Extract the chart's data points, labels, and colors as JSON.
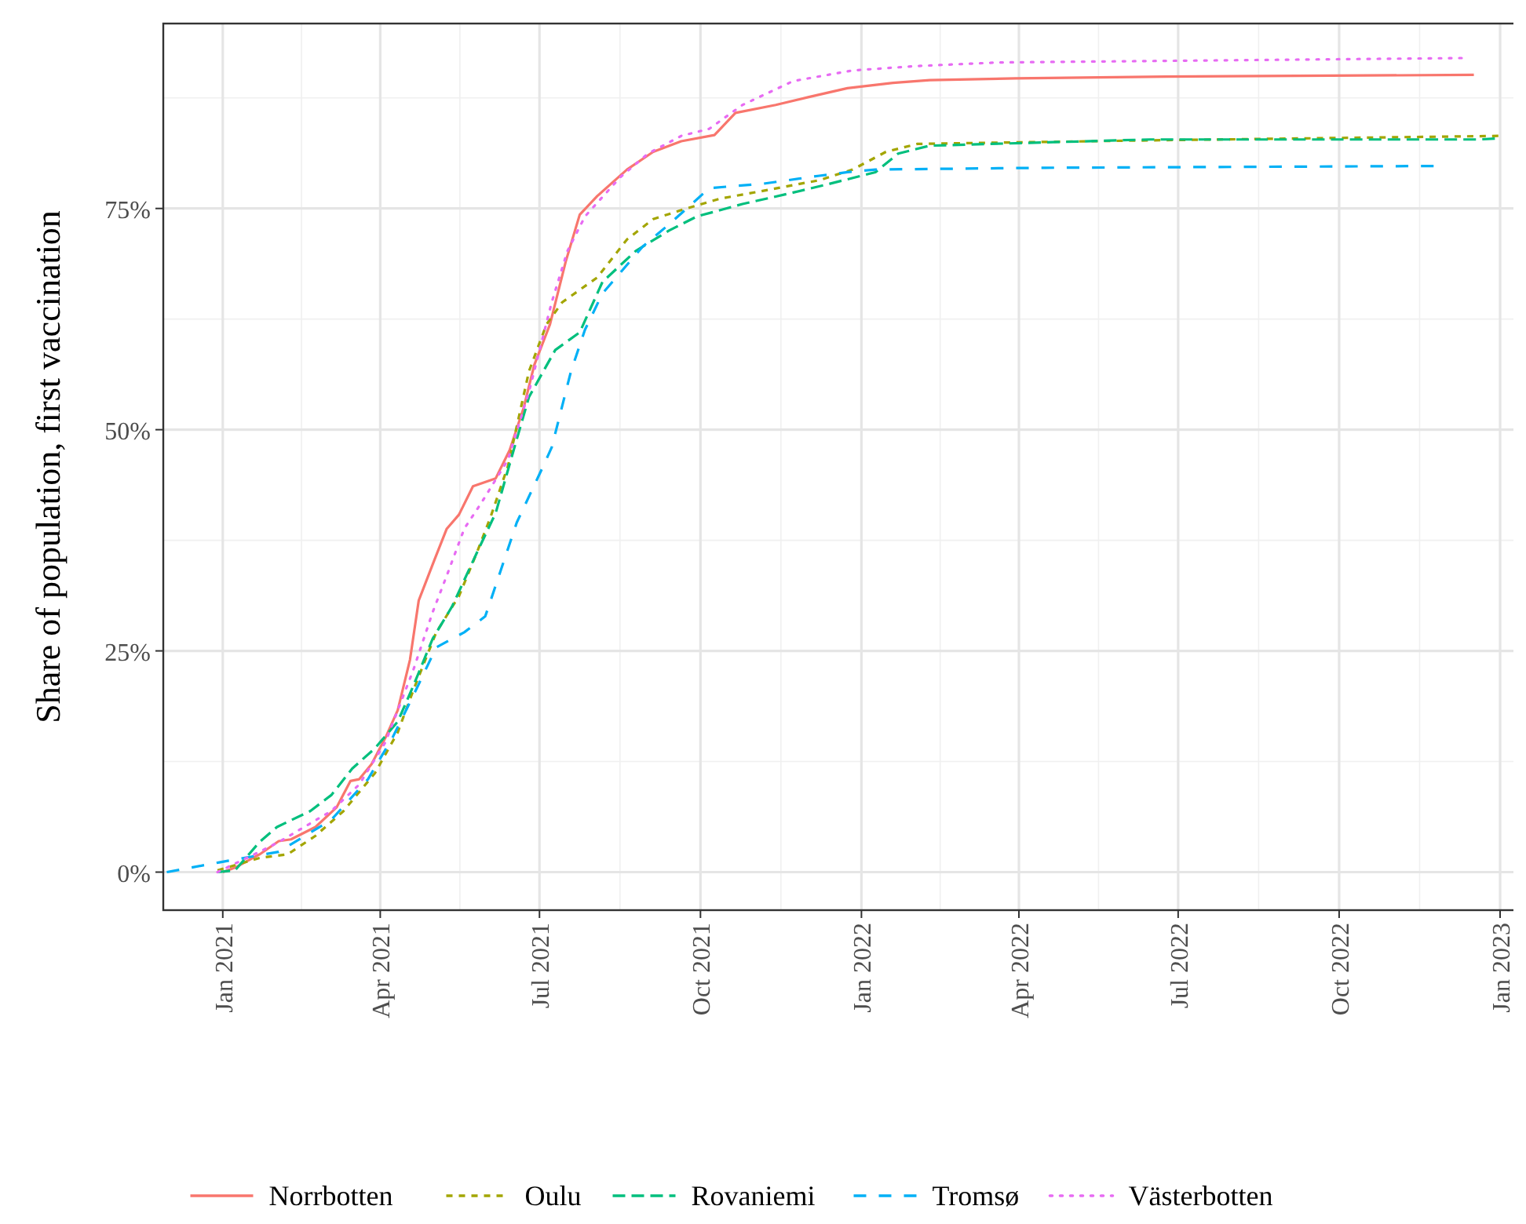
{
  "chart_data": {
    "type": "line",
    "ylabel": "Share of population, first vaccination",
    "xlim": [
      "2020-11-28",
      "2023-01-14"
    ],
    "ylim": [
      -4.3,
      95.9
    ],
    "xticks": [
      {
        "value": "2021-01",
        "label": "Jan 2021"
      },
      {
        "value": "2021-04",
        "label": "Apr 2021"
      },
      {
        "value": "2021-07",
        "label": "Jul 2021"
      },
      {
        "value": "2021-10",
        "label": "Oct 2021"
      },
      {
        "value": "2022-01",
        "label": "Jan 2022"
      },
      {
        "value": "2022-04",
        "label": "Apr 2022"
      },
      {
        "value": "2022-07",
        "label": "Jul 2022"
      },
      {
        "value": "2022-10",
        "label": "Oct 2022"
      },
      {
        "value": "2023-01",
        "label": "Jan 2023"
      }
    ],
    "yticks": [
      {
        "value": 0,
        "label": "0%"
      },
      {
        "value": 25,
        "label": "25%"
      },
      {
        "value": 50,
        "label": "50%"
      },
      {
        "value": 75,
        "label": "75%"
      }
    ],
    "grid": true,
    "legend": "bottom",
    "marker": "none",
    "series": [
      {
        "name": "Norrbotten",
        "color": "#f8766d",
        "line_style": "solid",
        "x": [
          "2021-01-01",
          "2021-01-08",
          "2021-01-22",
          "2021-02-02",
          "2021-02-09",
          "2021-02-23",
          "2021-03-07",
          "2021-03-15",
          "2021-03-20",
          "2021-03-27",
          "2021-04-04",
          "2021-04-11",
          "2021-04-18",
          "2021-04-23",
          "2021-05-02",
          "2021-05-09",
          "2021-05-16",
          "2021-05-24",
          "2021-06-06",
          "2021-06-14",
          "2021-06-22",
          "2021-06-28",
          "2021-07-07",
          "2021-07-16",
          "2021-07-24",
          "2021-08-03",
          "2021-08-20",
          "2021-09-04",
          "2021-09-20",
          "2021-10-09",
          "2021-10-21",
          "2021-11-13",
          "2021-12-02",
          "2021-12-24",
          "2022-01-19",
          "2022-02-09",
          "2022-03-30",
          "2022-06-24",
          "2022-12-17"
        ],
        "values": [
          0,
          0.5,
          2,
          3.5,
          3.7,
          5.1,
          7.3,
          10.3,
          10.5,
          12.2,
          15.2,
          18.3,
          24,
          30.7,
          35.3,
          38.8,
          40.4,
          43.6,
          44.5,
          47.7,
          52.5,
          57.3,
          61.9,
          69,
          74.3,
          76.4,
          79.4,
          81.4,
          82.6,
          83.3,
          85.8,
          86.7,
          87.6,
          88.6,
          89.2,
          89.5,
          89.7,
          89.9,
          90.1
        ]
      },
      {
        "name": "Oulu",
        "color": "#a3a500",
        "line_style": "dashed",
        "x": [
          "2020-12-29",
          "2021-01-22",
          "2021-02-07",
          "2021-02-23",
          "2021-03-11",
          "2021-03-29",
          "2021-04-11",
          "2021-04-20",
          "2021-05-03",
          "2021-05-16",
          "2021-05-26",
          "2021-06-03",
          "2021-06-13",
          "2021-06-25",
          "2021-07-05",
          "2021-07-14",
          "2021-08-03",
          "2021-08-20",
          "2021-09-04",
          "2021-09-23",
          "2021-10-12",
          "2021-11-06",
          "2021-12-08",
          "2021-12-27",
          "2022-01-15",
          "2022-02-02",
          "2022-06-15",
          "2022-12-31"
        ],
        "values": [
          0.2,
          1.6,
          2,
          4.1,
          6.9,
          11.2,
          15.8,
          20.6,
          27.1,
          31.2,
          36,
          40.1,
          45.9,
          56.6,
          61.9,
          64.4,
          67.2,
          71.5,
          73.8,
          75,
          76.1,
          77,
          78.2,
          79.4,
          81.4,
          82.3,
          82.7,
          83.2
        ]
      },
      {
        "name": "Rovaniemi",
        "color": "#00bf7d",
        "line_style": "dashed",
        "x": [
          "2020-12-29",
          "2021-01-08",
          "2021-01-22",
          "2021-02-01",
          "2021-02-20",
          "2021-03-04",
          "2021-03-16",
          "2021-03-29",
          "2021-04-11",
          "2021-04-20",
          "2021-05-01",
          "2021-05-12",
          "2021-05-26",
          "2021-06-06",
          "2021-06-18",
          "2021-06-25",
          "2021-07-10",
          "2021-07-24",
          "2021-08-06",
          "2021-08-25",
          "2021-09-13",
          "2021-09-29",
          "2021-10-25",
          "2021-11-23",
          "2021-12-14",
          "2022-01-09",
          "2022-01-22",
          "2022-02-09",
          "2022-06-15",
          "2022-12-20",
          "2022-12-29"
        ],
        "values": [
          0,
          0.2,
          3.4,
          5.1,
          6.9,
          8.7,
          11.7,
          14,
          17,
          21.1,
          26.4,
          30,
          36,
          40.6,
          48.9,
          53.7,
          59,
          61,
          66.7,
          70.2,
          72.5,
          74.1,
          75.5,
          76.8,
          77.8,
          79.1,
          81.2,
          82.1,
          82.8,
          82.8,
          82.9
        ]
      },
      {
        "name": "Tromsø",
        "color": "#00b0f6",
        "line_style": "dashed",
        "x": [
          "2020-11-30",
          "2020-12-30",
          "2021-02-02",
          "2021-03-04",
          "2021-03-25",
          "2021-04-08",
          "2021-04-20",
          "2021-05-03",
          "2021-05-19",
          "2021-05-31",
          "2021-06-06",
          "2021-06-18",
          "2021-07-02",
          "2021-07-08",
          "2021-07-19",
          "2021-07-27",
          "2021-08-06",
          "2021-08-29",
          "2021-09-13",
          "2021-09-26",
          "2021-10-06",
          "2021-11-06",
          "2021-12-08",
          "2021-12-24",
          "2022-01-09",
          "2022-04-16",
          "2022-11-24"
        ],
        "values": [
          0,
          1.1,
          2.3,
          5.9,
          10.5,
          15.2,
          20,
          25.4,
          27.1,
          28.9,
          32.4,
          39.5,
          45.4,
          48,
          56.6,
          61.3,
          65.4,
          70.7,
          73.2,
          75.5,
          77.3,
          77.8,
          78.7,
          79.1,
          79.4,
          79.6,
          79.8
        ]
      },
      {
        "name": "Västerbotten",
        "color": "#e76bf3",
        "line_style": "dotted",
        "x": [
          "2020-12-29",
          "2021-01-22",
          "2021-02-02",
          "2021-03-04",
          "2021-03-20",
          "2021-04-04",
          "2021-04-20",
          "2021-05-01",
          "2021-05-09",
          "2021-05-19",
          "2021-05-29",
          "2021-06-13",
          "2021-06-25",
          "2021-07-08",
          "2021-07-17",
          "2021-07-27",
          "2021-08-16",
          "2021-09-01",
          "2021-09-20",
          "2021-10-06",
          "2021-10-25",
          "2021-11-23",
          "2021-12-27",
          "2022-02-02",
          "2022-03-20",
          "2022-12-10"
        ],
        "values": [
          0,
          2.3,
          3.4,
          6.9,
          9.9,
          14.7,
          22.9,
          29.4,
          33.5,
          38.8,
          41.8,
          46.6,
          54.3,
          64.4,
          70.2,
          74.1,
          78.5,
          81.2,
          83.2,
          84,
          86.7,
          89.4,
          90.6,
          91.1,
          91.5,
          92
        ]
      }
    ]
  }
}
